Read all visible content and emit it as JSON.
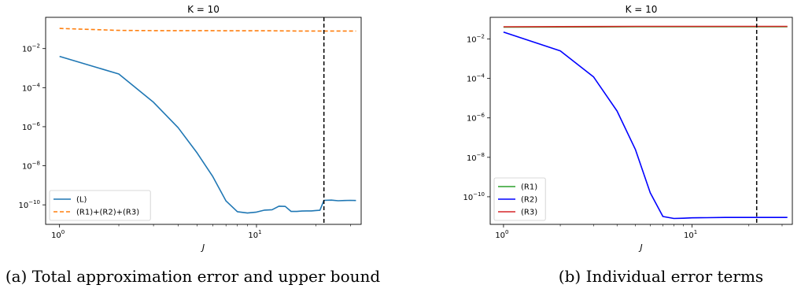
{
  "chart_data": [
    {
      "type": "line",
      "panel": "a",
      "title": "K =  10",
      "xlabel": "J",
      "ylabel": "",
      "xscale": "log",
      "yscale": "log",
      "xlim": [
        0.85,
        34
      ],
      "ylim_exp": [
        -11,
        -0.4
      ],
      "x_ticks": [
        {
          "value": 1,
          "base": "10",
          "exp": "0"
        },
        {
          "value": 10,
          "base": "10",
          "exp": "1"
        }
      ],
      "y_ticks": [
        {
          "exp": -2,
          "base": "10",
          "label": "−2"
        },
        {
          "exp": -4,
          "base": "10",
          "label": "−4"
        },
        {
          "exp": -6,
          "base": "10",
          "label": "−6"
        },
        {
          "exp": -8,
          "base": "10",
          "label": "−8"
        },
        {
          "exp": -10,
          "base": "10",
          "label": "−10"
        }
      ],
      "vline_x": 22,
      "legend_position": "lower left",
      "series": [
        {
          "name": "(L)",
          "color": "#1f77b4",
          "style": "solid",
          "x": [
            1,
            2,
            3,
            4,
            5,
            6,
            7,
            8,
            9,
            10,
            11,
            12,
            13,
            14,
            15,
            16,
            17,
            18,
            19,
            20,
            21,
            22,
            24,
            26,
            28,
            30,
            32
          ],
          "y_exp": [
            -2.4,
            -3.3,
            -4.75,
            -6.05,
            -7.35,
            -8.55,
            -9.8,
            -10.35,
            -10.42,
            -10.37,
            -10.27,
            -10.25,
            -10.07,
            -10.08,
            -10.34,
            -10.34,
            -10.32,
            -10.31,
            -10.31,
            -10.29,
            -10.28,
            -9.77,
            -9.76,
            -9.79,
            -9.78,
            -9.77,
            -9.78
          ]
        },
        {
          "name": "(R1)+(R2)+(R3)",
          "color": "#ff7f0e",
          "style": "dashed",
          "x": [
            1,
            2,
            3,
            5,
            8,
            12,
            16,
            20,
            22,
            26,
            32
          ],
          "y_exp": [
            -0.97,
            -1.07,
            -1.08,
            -1.08,
            -1.09,
            -1.09,
            -1.1,
            -1.1,
            -1.1,
            -1.1,
            -1.1
          ]
        }
      ]
    },
    {
      "type": "line",
      "panel": "b",
      "title": "K =  10",
      "xlabel": "J",
      "ylabel": "",
      "xscale": "log",
      "yscale": "log",
      "xlim": [
        0.85,
        34
      ],
      "ylim_exp": [
        -11.4,
        -0.9
      ],
      "x_ticks": [
        {
          "value": 1,
          "base": "10",
          "exp": "0"
        },
        {
          "value": 10,
          "base": "10",
          "exp": "1"
        }
      ],
      "y_ticks": [
        {
          "exp": -2,
          "base": "10",
          "label": "−2"
        },
        {
          "exp": -4,
          "base": "10",
          "label": "−4"
        },
        {
          "exp": -6,
          "base": "10",
          "label": "−6"
        },
        {
          "exp": -8,
          "base": "10",
          "label": "−8"
        },
        {
          "exp": -10,
          "base": "10",
          "label": "−10"
        }
      ],
      "vline_x": 22,
      "legend_position": "lower left",
      "series": [
        {
          "name": "(R1)",
          "color": "#2ca02c",
          "style": "solid",
          "x": [
            1,
            2,
            5,
            10,
            20,
            32
          ],
          "y_exp": [
            -1.4,
            -1.39,
            -1.38,
            -1.38,
            -1.38,
            -1.38
          ]
        },
        {
          "name": "(R2)",
          "color": "#0000ff",
          "style": "solid",
          "x": [
            1,
            2,
            3,
            4,
            5,
            6,
            7,
            8,
            9,
            10,
            12,
            15,
            20,
            25,
            32
          ],
          "y_exp": [
            -1.65,
            -2.6,
            -3.92,
            -5.65,
            -7.6,
            -9.8,
            -11.0,
            -11.1,
            -11.09,
            -11.07,
            -11.06,
            -11.05,
            -11.05,
            -11.05,
            -11.05
          ]
        },
        {
          "name": "(R3)",
          "color": "#d62728",
          "style": "solid",
          "x": [
            1,
            2,
            5,
            10,
            20,
            32
          ],
          "y_exp": [
            -1.38,
            -1.37,
            -1.36,
            -1.36,
            -1.36,
            -1.36
          ]
        }
      ]
    }
  ],
  "captions": {
    "a": "(a) Total approximation error and upper bound",
    "b": "(b) Individual error terms"
  }
}
